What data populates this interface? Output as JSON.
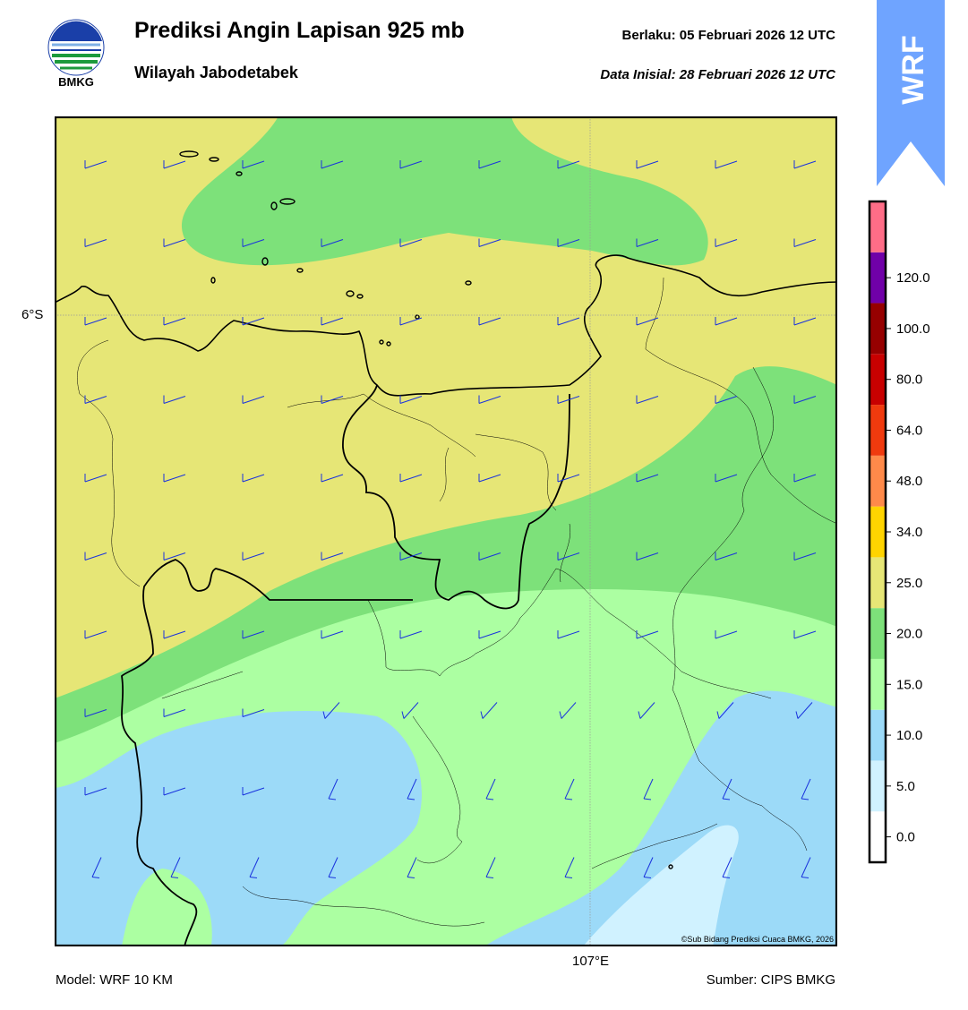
{
  "header": {
    "title": "Prediksi Angin Lapisan 925 mb",
    "subtitle": "Wilayah Jabodetabek",
    "valid": "Berlaku:  05 Februari 2026 12 UTC",
    "init": "Data Inisial:  28 Februari 2026 12 UTC"
  },
  "logo": {
    "text": "BMKG",
    "icon": "bmkg-logo-icon"
  },
  "badge": {
    "text": "WRF",
    "color": "#6fa4ff"
  },
  "map": {
    "lat_label": "6°S",
    "lon_label": "107°E",
    "credit": "©Sub Bidang Prediksi Cuaca BMKG, 2026"
  },
  "footer": {
    "model": "Model: WRF 10 KM",
    "source": "Sumber: CIPS BMKG"
  },
  "colorbar": {
    "levels": [
      "0.0",
      "5.0",
      "10.0",
      "15.0",
      "20.0",
      "25.0",
      "34.0",
      "48.0",
      "64.0",
      "80.0",
      "100.0",
      "120.0"
    ],
    "colors": [
      "#ffffff",
      "#d0f2ff",
      "#9cdaf8",
      "#acffa2",
      "#7de17a",
      "#e6e676",
      "#ffd400",
      "#ff8a4a",
      "#f03a0e",
      "#c80000",
      "#960000",
      "#7000a8",
      "#ff6d87"
    ]
  }
}
